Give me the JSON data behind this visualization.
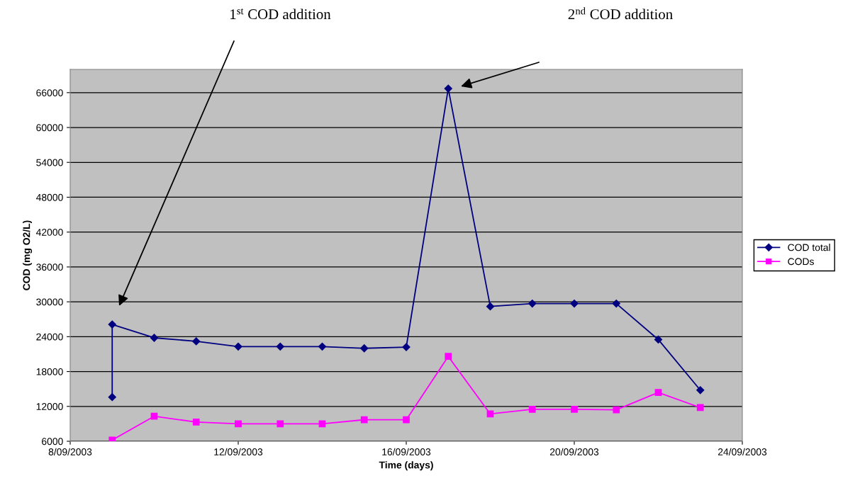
{
  "chart_data": {
    "type": "line",
    "xlabel": "Time (days)",
    "ylabel": "COD (mg O2/L)",
    "x": [
      "2003-09-09",
      "2003-09-09",
      "2003-09-10",
      "2003-09-11",
      "2003-09-12",
      "2003-09-13",
      "2003-09-14",
      "2003-09-15",
      "2003-09-16",
      "2003-09-17",
      "2003-09-18",
      "2003-09-19",
      "2003-09-20",
      "2003-09-21",
      "2003-09-22",
      "2003-09-23"
    ],
    "series": [
      {
        "name": "COD total",
        "color": "#000080",
        "marker": "diamond",
        "values": [
          13600,
          26100,
          23800,
          23200,
          22300,
          22300,
          22300,
          22000,
          22200,
          66700,
          29200,
          29700,
          29700,
          29700,
          23500,
          14800
        ]
      },
      {
        "name": "CODs",
        "color": "#ff00ff",
        "marker": "square",
        "x": [
          "2003-09-09",
          "2003-09-10",
          "2003-09-11",
          "2003-09-12",
          "2003-09-13",
          "2003-09-14",
          "2003-09-15",
          "2003-09-16",
          "2003-09-17",
          "2003-09-18",
          "2003-09-19",
          "2003-09-20",
          "2003-09-21",
          "2003-09-22",
          "2003-09-23"
        ],
        "values": [
          6200,
          10300,
          9300,
          9000,
          9000,
          9000,
          9700,
          9700,
          20600,
          10700,
          11500,
          11500,
          11400,
          14400,
          11800
        ]
      }
    ],
    "xlim": [
      "2003-09-08",
      "2003-09-24"
    ],
    "xticks": [
      {
        "value": "2003-09-08",
        "label": "8/09/2003"
      },
      {
        "value": "2003-09-12",
        "label": "12/09/2003"
      },
      {
        "value": "2003-09-16",
        "label": "16/09/2003"
      },
      {
        "value": "2003-09-20",
        "label": "20/09/2003"
      },
      {
        "value": "2003-09-24",
        "label": "24/09/2003"
      }
    ],
    "ylim": [
      6000,
      70000
    ],
    "yticks": [
      6000,
      12000,
      18000,
      24000,
      30000,
      36000,
      42000,
      48000,
      54000,
      60000,
      66000
    ],
    "grid": "y",
    "legend": "right",
    "line_style": "solid",
    "annotations": [
      "1$^{st}$ COD addition",
      "2$^{nd}$ COD addition"
    ]
  }
}
